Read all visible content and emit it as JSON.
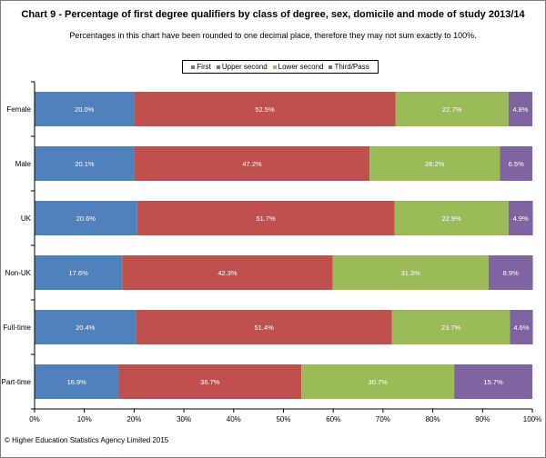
{
  "chart_data": {
    "type": "bar",
    "orientation": "horizontal",
    "stacked": true,
    "title": "Chart 9 - Percentage of first  degree qualifiers by class  of degree, sex, domicile and mode of study  2013/14",
    "subtitle": "Percentages in this chart have been rounded to one decimal place, therefore they may not sum exactly to 100%.",
    "categories": [
      "Female",
      "Male",
      "UK",
      "Non-UK",
      "Full-time",
      "Part-time"
    ],
    "series": [
      {
        "name": "First",
        "color": "#4f81bd",
        "values": [
          20.0,
          20.1,
          20.6,
          17.6,
          20.4,
          16.9
        ],
        "labels": [
          "20.0%",
          "20.1%",
          "20.6%",
          "17.6%",
          "20.4%",
          "16.9%"
        ]
      },
      {
        "name": "Upper second",
        "color": "#c0504d",
        "values": [
          52.5,
          47.2,
          51.7,
          42.3,
          51.4,
          36.7
        ],
        "labels": [
          "52.5%",
          "47.2%",
          "51.7%",
          "42.3%",
          "51.4%",
          "36.7%"
        ]
      },
      {
        "name": "Lower second",
        "color": "#9bbb59",
        "values": [
          22.7,
          26.2,
          22.9,
          31.3,
          23.7,
          30.7
        ],
        "labels": [
          "22.7%",
          "26.2%",
          "22.9%",
          "31.3%",
          "23.7%",
          "30.7%"
        ]
      },
      {
        "name": "Third/Pass",
        "color": "#8064a2",
        "values": [
          4.8,
          6.5,
          4.9,
          8.9,
          4.6,
          15.7
        ],
        "labels": [
          "4.8%",
          "6.5%",
          "4.9%",
          "8.9%",
          "4.6%",
          "15.7%"
        ]
      }
    ],
    "xlim": [
      0,
      100
    ],
    "x_tick_labels": [
      "0%",
      "10%",
      "20%",
      "30%",
      "40%",
      "50%",
      "60%",
      "70%",
      "80%",
      "90%",
      "100%"
    ],
    "legend_position": "top",
    "grid": false
  },
  "footer": {
    "copyright": "© Higher Education Statistics Agency Limited 2015"
  }
}
